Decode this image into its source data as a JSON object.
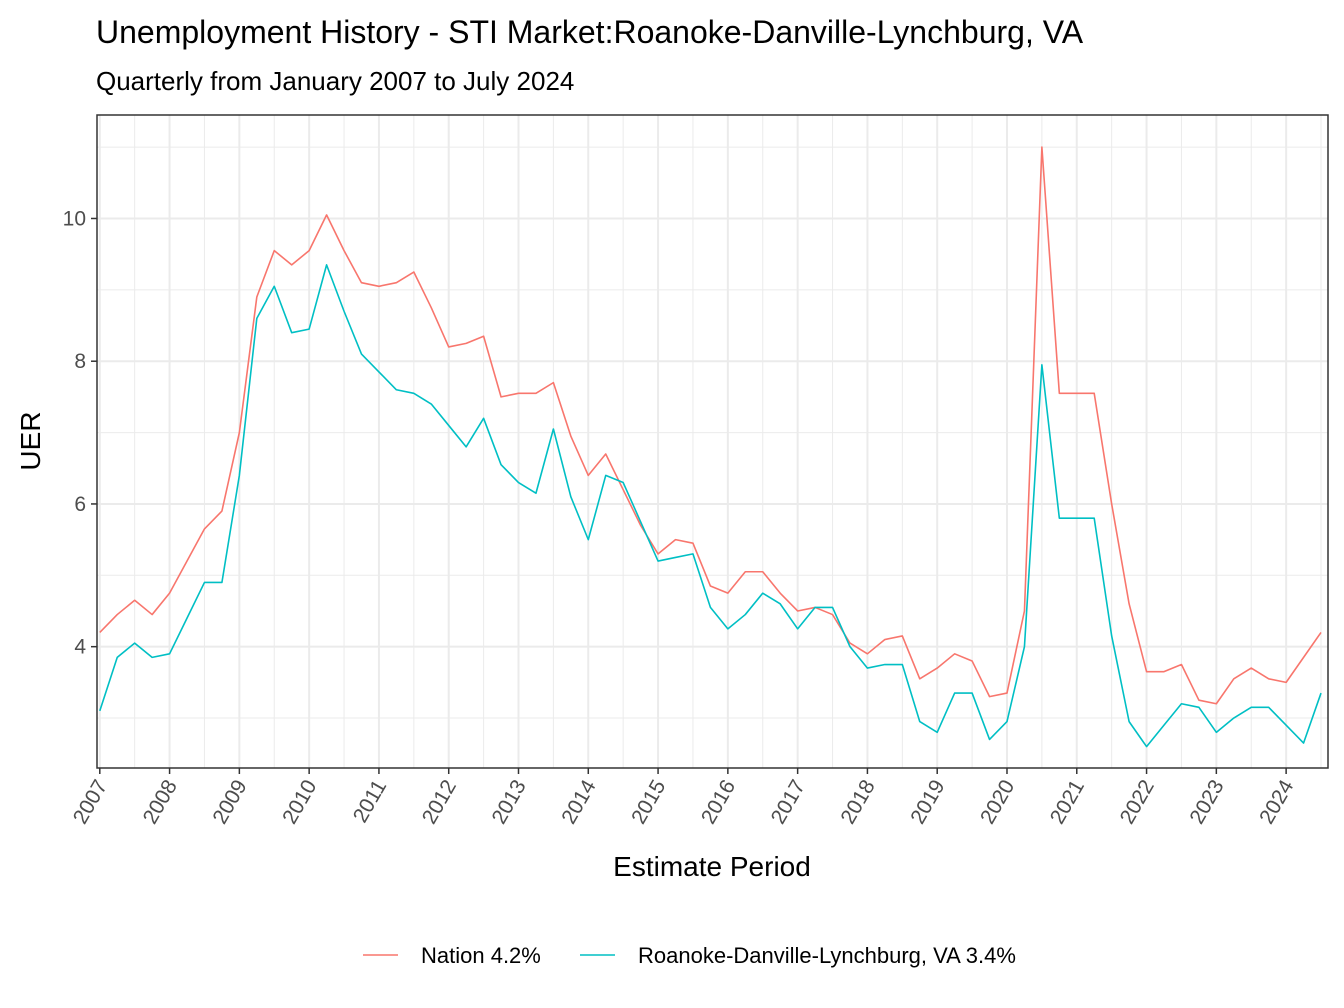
{
  "chart_data": {
    "type": "line",
    "title": "Unemployment History - STI Market:Roanoke-Danville-Lynchburg, VA",
    "subtitle": "Quarterly from January 2007 to July 2024",
    "xlabel": "Estimate Period",
    "ylabel": "UER",
    "xlim": [
      2006.96,
      2024.6
    ],
    "ylim": [
      2.3,
      11.45
    ],
    "x_ticks": [
      "2007",
      "2008",
      "2009",
      "2010",
      "2011",
      "2012",
      "2013",
      "2014",
      "2015",
      "2016",
      "2017",
      "2018",
      "2019",
      "2020",
      "2021",
      "2022",
      "2023",
      "2024"
    ],
    "y_ticks": [
      4,
      6,
      8,
      10
    ],
    "grid": true,
    "legend_position": "bottom",
    "x_start_year": 2007,
    "x_step": 0.25,
    "series": [
      {
        "name": "Nation 4.2%",
        "color": "#F8766D",
        "values": [
          4.2,
          4.45,
          4.65,
          4.45,
          4.75,
          5.2,
          5.65,
          5.9,
          7.0,
          8.9,
          9.55,
          9.35,
          9.55,
          10.05,
          9.55,
          9.1,
          9.05,
          9.1,
          9.25,
          8.75,
          8.2,
          8.25,
          8.35,
          7.5,
          7.55,
          7.55,
          7.7,
          6.95,
          6.4,
          6.7,
          6.2,
          5.7,
          5.3,
          5.5,
          5.45,
          4.85,
          4.75,
          5.05,
          5.05,
          4.75,
          4.5,
          4.55,
          4.45,
          4.05,
          3.9,
          4.1,
          4.15,
          3.55,
          3.7,
          3.9,
          3.8,
          3.3,
          3.35,
          4.5,
          11.0,
          7.55,
          7.55,
          7.55,
          6.0,
          4.6,
          3.65,
          3.65,
          3.75,
          3.25,
          3.2,
          3.55,
          3.7,
          3.55,
          3.5,
          3.85,
          4.2
        ]
      },
      {
        "name": "Roanoke-Danville-Lynchburg, VA 3.4%",
        "color": "#00BFC4",
        "values": [
          3.1,
          3.85,
          4.05,
          3.85,
          3.9,
          4.4,
          4.9,
          4.9,
          6.4,
          8.6,
          9.05,
          8.4,
          8.45,
          9.35,
          8.7,
          8.1,
          7.85,
          7.6,
          7.55,
          7.4,
          7.1,
          6.8,
          7.2,
          6.55,
          6.3,
          6.15,
          7.05,
          6.1,
          5.5,
          6.4,
          6.3,
          5.75,
          5.2,
          5.25,
          5.3,
          4.55,
          4.25,
          4.45,
          4.75,
          4.6,
          4.25,
          4.55,
          4.55,
          4.0,
          3.7,
          3.75,
          3.75,
          2.95,
          2.8,
          3.35,
          3.35,
          2.7,
          2.95,
          4.0,
          7.95,
          5.8,
          5.8,
          5.8,
          4.15,
          2.95,
          2.6,
          2.9,
          3.2,
          3.15,
          2.8,
          3.0,
          3.15,
          3.15,
          2.9,
          2.65,
          3.35
        ]
      }
    ]
  }
}
